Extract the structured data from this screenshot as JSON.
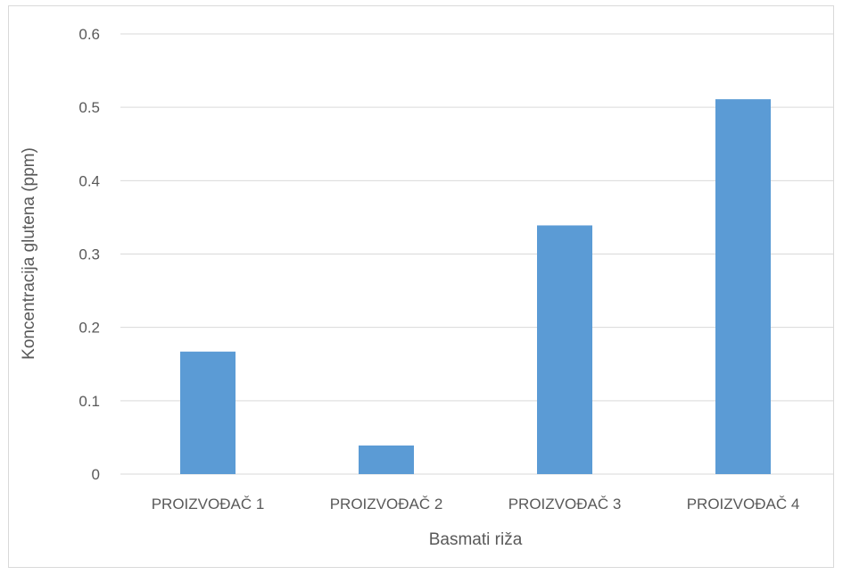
{
  "chart_data": {
    "type": "bar",
    "title": "",
    "categories": [
      "PROIZVOĐAČ 1",
      "PROIZVOĐAČ 2",
      "PROIZVOĐAČ 3",
      "PROIZVOĐAČ 4"
    ],
    "values": [
      0.167,
      0.039,
      0.339,
      0.511
    ],
    "xlabel": "Basmati riža",
    "ylabel": "Koncentracija glutena (ppm)",
    "ylim": [
      0,
      0.6
    ],
    "yticks": [
      "0",
      "0.1",
      "0.2",
      "0.3",
      "0.4",
      "0.5",
      "0.6"
    ],
    "grid": true,
    "legend": "none",
    "bar_color": "#5b9bd5",
    "grid_color": "#d9d9d9",
    "text_color": "#595959"
  }
}
